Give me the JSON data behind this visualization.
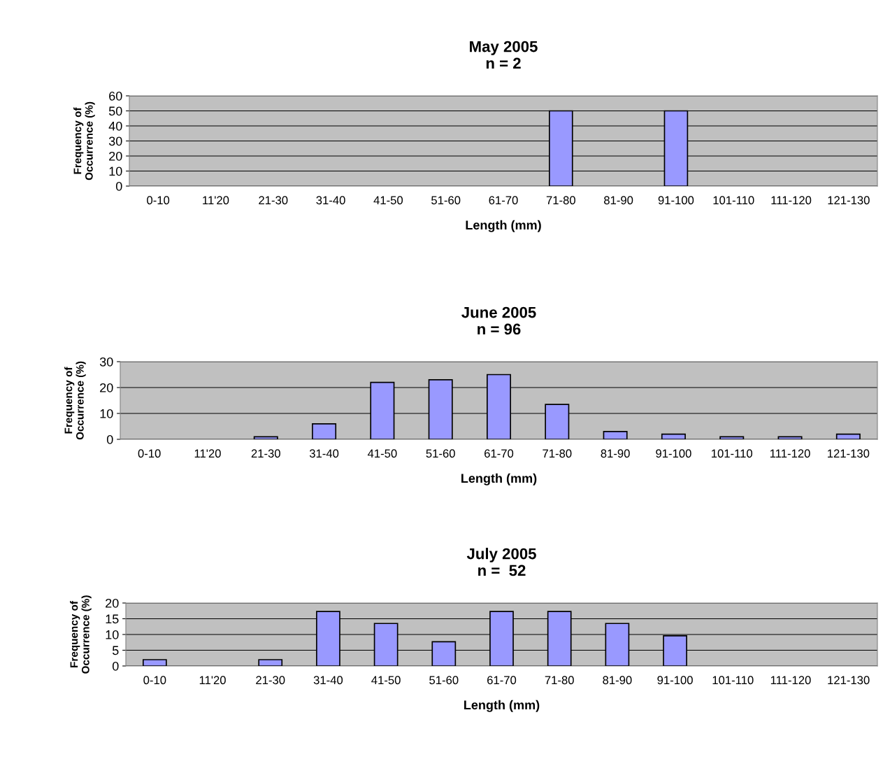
{
  "chart_data": [
    {
      "type": "bar",
      "title": "May 2005\nn = 2",
      "xlabel": "Length (mm)",
      "ylabel": "Frequency of\nOccurrence (%)",
      "categories": [
        "0-10",
        "11'20",
        "21-30",
        "31-40",
        "41-50",
        "51-60",
        "61-70",
        "71-80",
        "81-90",
        "91-100",
        "101-110",
        "111-120",
        "121-130"
      ],
      "values": [
        0,
        0,
        0,
        0,
        0,
        0,
        0,
        50,
        0,
        50,
        0,
        0,
        0
      ],
      "color": "#9999ff",
      "ylim": [
        0,
        60
      ],
      "yticks": [
        0,
        10,
        20,
        30,
        40,
        50,
        60
      ],
      "grid": "y",
      "legend": false
    },
    {
      "type": "bar",
      "title": "June 2005\nn = 96",
      "xlabel": "Length (mm)",
      "ylabel": "Frequency of\nOccurrence (%)",
      "categories": [
        "0-10",
        "11'20",
        "21-30",
        "31-40",
        "41-50",
        "51-60",
        "61-70",
        "71-80",
        "81-90",
        "91-100",
        "101-110",
        "111-120",
        "121-130"
      ],
      "values": [
        0,
        0,
        1,
        6,
        22,
        23,
        25,
        13.5,
        3,
        2,
        1,
        1,
        2
      ],
      "color": "#9999ff",
      "ylim": [
        0,
        30
      ],
      "yticks": [
        0,
        10,
        20,
        30
      ],
      "grid": "y",
      "legend": false
    },
    {
      "type": "bar",
      "title": "July 2005\nn =  52",
      "xlabel": "Length (mm)",
      "ylabel": "Frequency of\nOccurrence (%)",
      "categories": [
        "0-10",
        "11'20",
        "21-30",
        "31-40",
        "41-50",
        "51-60",
        "61-70",
        "71-80",
        "81-90",
        "91-100",
        "101-110",
        "111-120",
        "121-130"
      ],
      "values": [
        2,
        0,
        2,
        17.3,
        13.5,
        7.7,
        17.3,
        17.3,
        13.5,
        9.6,
        0,
        0,
        0
      ],
      "color": "#9999ff",
      "ylim": [
        0,
        20
      ],
      "yticks": [
        0,
        5,
        10,
        15,
        20
      ],
      "grid": "y",
      "legend": false
    }
  ]
}
